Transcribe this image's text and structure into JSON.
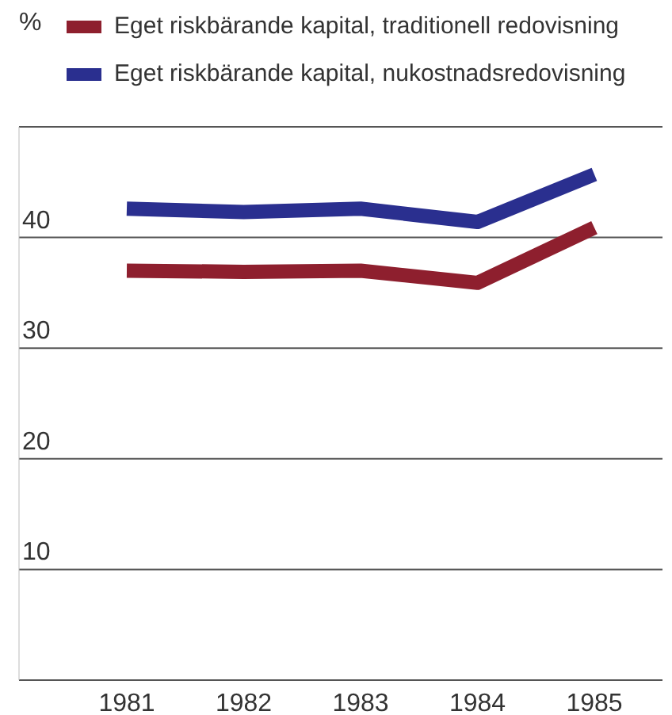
{
  "chart_data": {
    "type": "line",
    "ylabel": "%",
    "categories": [
      "1981",
      "1982",
      "1983",
      "1984",
      "1985"
    ],
    "series": [
      {
        "name": "Eget riskbärande kapital, traditionell redovisning",
        "color": "#8e1f2e",
        "values": [
          37.0,
          36.9,
          37.0,
          35.9,
          40.9
        ]
      },
      {
        "name": "Eget riskbärande kapital, nukostnadsredovisning",
        "color": "#2a2f8f",
        "values": [
          42.6,
          42.3,
          42.6,
          41.4,
          45.7
        ]
      }
    ],
    "ylim": [
      0,
      50
    ],
    "yticks": [
      {
        "value": 0,
        "label": null
      },
      10,
      20,
      30,
      40,
      {
        "value": 50,
        "label": null
      }
    ],
    "grid": "y",
    "legend": "top",
    "marker": "none",
    "line_style": "solid"
  }
}
